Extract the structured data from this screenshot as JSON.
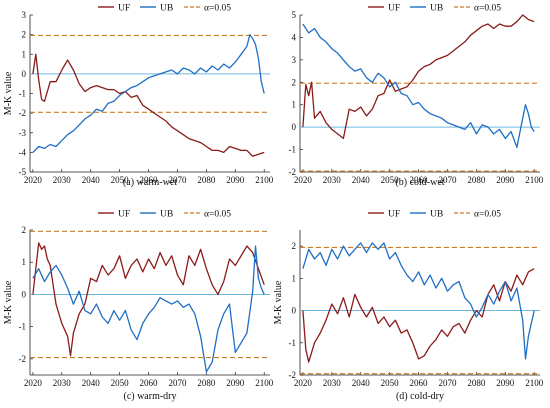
{
  "colors": {
    "uf": "#8B1A1A",
    "ub": "#1F6FC4",
    "threshold": "#C87F2A",
    "zero": "#6FB6E0"
  },
  "legend": {
    "uf": "UF",
    "ub": "UB",
    "alpha": "α=0.05"
  },
  "chart_data": [
    {
      "type": "line",
      "caption": "(a) warm-wet",
      "ylabel": "M-K value",
      "xlim": [
        2019,
        2102
      ],
      "ylim": [
        -5,
        3
      ],
      "xticks": [
        2020,
        2030,
        2040,
        2050,
        2060,
        2070,
        2080,
        2090,
        2100
      ],
      "yticks": [
        -5,
        -4,
        -3,
        -2,
        -1,
        0,
        1,
        2,
        3
      ],
      "threshold": 1.96,
      "series": [
        {
          "name": "UF",
          "x": [
            2020,
            2021,
            2022,
            2023,
            2024,
            2026,
            2028,
            2030,
            2032,
            2034,
            2036,
            2038,
            2040,
            2042,
            2044,
            2046,
            2048,
            2050,
            2052,
            2054,
            2056,
            2058,
            2060,
            2062,
            2064,
            2066,
            2068,
            2070,
            2072,
            2074,
            2076,
            2078,
            2080,
            2082,
            2084,
            2086,
            2088,
            2090,
            2092,
            2094,
            2096,
            2098,
            2100
          ],
          "values": [
            0,
            1.0,
            -0.3,
            -1.3,
            -1.4,
            -0.4,
            -0.4,
            0.2,
            0.7,
            0.2,
            -0.5,
            -0.9,
            -0.7,
            -0.6,
            -0.7,
            -0.8,
            -0.8,
            -1.0,
            -0.9,
            -1.2,
            -1.1,
            -1.6,
            -1.8,
            -2.0,
            -2.2,
            -2.4,
            -2.7,
            -2.9,
            -3.1,
            -3.3,
            -3.4,
            -3.5,
            -3.7,
            -3.9,
            -3.9,
            -4.0,
            -3.7,
            -3.8,
            -3.9,
            -3.9,
            -4.2,
            -4.1,
            -4.0
          ]
        },
        {
          "name": "UB",
          "x": [
            2020,
            2022,
            2024,
            2026,
            2028,
            2030,
            2032,
            2034,
            2036,
            2038,
            2040,
            2042,
            2044,
            2046,
            2048,
            2050,
            2052,
            2054,
            2056,
            2058,
            2060,
            2062,
            2064,
            2066,
            2068,
            2070,
            2072,
            2074,
            2076,
            2078,
            2080,
            2082,
            2084,
            2086,
            2088,
            2090,
            2092,
            2094,
            2095,
            2096,
            2097,
            2098,
            2099,
            2100
          ],
          "values": [
            -4.0,
            -3.7,
            -3.8,
            -3.6,
            -3.7,
            -3.4,
            -3.1,
            -2.9,
            -2.6,
            -2.3,
            -2.1,
            -1.8,
            -1.9,
            -1.5,
            -1.4,
            -1.1,
            -0.9,
            -0.7,
            -0.6,
            -0.4,
            -0.2,
            -0.1,
            0.0,
            0.1,
            0.2,
            0.0,
            0.3,
            0.2,
            0.0,
            0.3,
            0.1,
            0.4,
            0.2,
            0.5,
            0.3,
            0.6,
            1.0,
            1.4,
            2.0,
            1.8,
            1.5,
            0.8,
            -0.4,
            -1.0
          ]
        }
      ]
    },
    {
      "type": "line",
      "caption": "(b) cold-wet",
      "ylabel": "",
      "xlim": [
        2019,
        2102
      ],
      "ylim": [
        -2,
        5
      ],
      "xticks": [
        2020,
        2030,
        2040,
        2050,
        2060,
        2070,
        2080,
        2090,
        2100
      ],
      "yticks": [
        -2,
        -1,
        0,
        1,
        2,
        3,
        4,
        5
      ],
      "threshold": 1.96,
      "series": [
        {
          "name": "UF",
          "x": [
            2020,
            2021,
            2022,
            2023,
            2024,
            2026,
            2028,
            2030,
            2032,
            2034,
            2036,
            2038,
            2040,
            2042,
            2044,
            2046,
            2048,
            2050,
            2052,
            2054,
            2056,
            2058,
            2060,
            2062,
            2064,
            2066,
            2068,
            2070,
            2072,
            2074,
            2076,
            2078,
            2080,
            2082,
            2084,
            2086,
            2088,
            2090,
            2092,
            2094,
            2096,
            2098,
            2100
          ],
          "values": [
            0,
            1.9,
            1.4,
            2.0,
            0.4,
            0.7,
            0.2,
            -0.1,
            -0.3,
            -0.5,
            0.8,
            0.7,
            0.9,
            0.5,
            0.8,
            1.4,
            1.5,
            2.1,
            1.6,
            1.7,
            1.8,
            2.1,
            2.5,
            2.7,
            2.8,
            3.0,
            3.1,
            3.2,
            3.4,
            3.6,
            3.8,
            4.1,
            4.3,
            4.5,
            4.6,
            4.4,
            4.6,
            4.5,
            4.5,
            4.7,
            5.0,
            4.8,
            4.7
          ]
        },
        {
          "name": "UB",
          "x": [
            2020,
            2022,
            2024,
            2026,
            2028,
            2030,
            2032,
            2034,
            2036,
            2038,
            2040,
            2042,
            2044,
            2046,
            2048,
            2050,
            2052,
            2054,
            2056,
            2058,
            2060,
            2062,
            2064,
            2066,
            2068,
            2070,
            2072,
            2074,
            2076,
            2078,
            2080,
            2082,
            2084,
            2086,
            2088,
            2090,
            2092,
            2094,
            2096,
            2097,
            2098,
            2099,
            2100
          ],
          "values": [
            4.6,
            4.2,
            4.4,
            4.0,
            3.8,
            3.5,
            3.3,
            3.0,
            2.7,
            2.5,
            2.6,
            2.2,
            2.0,
            2.4,
            2.2,
            1.8,
            2.0,
            1.5,
            1.4,
            1.0,
            1.1,
            0.8,
            0.6,
            0.5,
            0.4,
            0.2,
            0.1,
            0.0,
            -0.1,
            0.2,
            -0.3,
            0.1,
            0.0,
            -0.3,
            -0.1,
            -0.5,
            -0.2,
            -0.9,
            0.4,
            1.0,
            0.6,
            0.0,
            -0.2
          ]
        }
      ]
    },
    {
      "type": "line",
      "caption": "(c) warm-dry",
      "ylabel": "M-K value",
      "xlim": [
        2019,
        2102
      ],
      "ylim": [
        -2.5,
        2
      ],
      "xticks": [
        2020,
        2030,
        2040,
        2050,
        2060,
        2070,
        2080,
        2090,
        2100
      ],
      "yticks": [
        -2,
        -1,
        0,
        1,
        2
      ],
      "threshold": 1.96,
      "series": [
        {
          "name": "UF",
          "x": [
            2020,
            2021,
            2022,
            2023,
            2024,
            2025,
            2026,
            2027,
            2028,
            2030,
            2032,
            2033,
            2034,
            2036,
            2038,
            2040,
            2042,
            2044,
            2046,
            2048,
            2050,
            2052,
            2054,
            2056,
            2058,
            2060,
            2062,
            2064,
            2066,
            2068,
            2070,
            2072,
            2074,
            2076,
            2078,
            2080,
            2082,
            2084,
            2086,
            2088,
            2090,
            2092,
            2094,
            2096,
            2098,
            2100
          ],
          "values": [
            0,
            0.8,
            1.6,
            1.4,
            1.5,
            1.1,
            0.9,
            0.3,
            -0.3,
            -0.9,
            -1.3,
            -1.9,
            -1.2,
            -0.6,
            -0.3,
            0.5,
            0.4,
            0.9,
            0.6,
            0.8,
            1.2,
            0.5,
            0.9,
            1.1,
            0.7,
            1.1,
            0.8,
            1.3,
            0.9,
            1.2,
            0.6,
            0.3,
            1.2,
            0.9,
            1.4,
            0.8,
            0.3,
            0.0,
            0.4,
            1.1,
            0.9,
            1.2,
            1.5,
            1.3,
            0.8,
            0.3
          ]
        },
        {
          "name": "UB",
          "x": [
            2020,
            2022,
            2024,
            2026,
            2028,
            2030,
            2032,
            2034,
            2036,
            2038,
            2040,
            2042,
            2044,
            2046,
            2048,
            2050,
            2052,
            2054,
            2056,
            2058,
            2060,
            2062,
            2064,
            2066,
            2068,
            2070,
            2072,
            2074,
            2076,
            2078,
            2080,
            2082,
            2084,
            2086,
            2088,
            2090,
            2092,
            2094,
            2096,
            2097,
            2098,
            2099,
            2100
          ],
          "values": [
            0.5,
            0.8,
            0.4,
            0.7,
            0.9,
            0.6,
            0.2,
            -0.3,
            0.1,
            -0.5,
            -0.6,
            -0.3,
            -0.7,
            -0.9,
            -0.5,
            -0.8,
            -0.5,
            -1.1,
            -1.4,
            -0.9,
            -0.6,
            -0.4,
            -0.1,
            -0.2,
            -0.3,
            -0.2,
            -0.4,
            -0.3,
            -0.6,
            -1.3,
            -2.4,
            -2.1,
            -1.1,
            -0.6,
            -0.3,
            -1.8,
            -1.5,
            -1.2,
            0.1,
            1.5,
            0.5,
            0.2,
            0.0
          ]
        }
      ]
    },
    {
      "type": "line",
      "caption": "(d) cold-dry",
      "ylabel": "M-K value",
      "xlim": [
        2019,
        2102
      ],
      "ylim": [
        -2,
        2.5
      ],
      "xticks": [
        2020,
        2030,
        2040,
        2050,
        2060,
        2070,
        2080,
        2090,
        2100
      ],
      "yticks": [
        -2,
        -1,
        0,
        1,
        2
      ],
      "threshold": 1.96,
      "series": [
        {
          "name": "UF",
          "x": [
            2020,
            2021,
            2022,
            2024,
            2026,
            2028,
            2030,
            2032,
            2034,
            2036,
            2038,
            2040,
            2042,
            2044,
            2046,
            2048,
            2050,
            2052,
            2054,
            2056,
            2058,
            2060,
            2062,
            2064,
            2066,
            2068,
            2070,
            2072,
            2074,
            2076,
            2078,
            2080,
            2082,
            2084,
            2086,
            2088,
            2090,
            2092,
            2094,
            2096,
            2098,
            2100
          ],
          "values": [
            0,
            -1.2,
            -1.6,
            -1.0,
            -0.7,
            -0.3,
            0.2,
            -0.1,
            0.4,
            -0.2,
            0.5,
            0.1,
            -0.2,
            0.1,
            -0.4,
            -0.2,
            -0.5,
            -0.3,
            -0.7,
            -0.6,
            -1.0,
            -1.5,
            -1.4,
            -1.1,
            -0.9,
            -0.6,
            -0.8,
            -0.5,
            -0.4,
            -0.7,
            -0.3,
            0.0,
            -0.2,
            0.5,
            0.8,
            0.3,
            0.9,
            0.6,
            1.1,
            0.8,
            1.2,
            1.3
          ]
        },
        {
          "name": "UB",
          "x": [
            2020,
            2022,
            2024,
            2026,
            2028,
            2030,
            2032,
            2034,
            2036,
            2038,
            2040,
            2042,
            2044,
            2046,
            2048,
            2050,
            2052,
            2054,
            2056,
            2058,
            2060,
            2062,
            2064,
            2066,
            2068,
            2070,
            2072,
            2074,
            2076,
            2078,
            2080,
            2082,
            2084,
            2086,
            2088,
            2090,
            2092,
            2094,
            2096,
            2097,
            2098,
            2099,
            2100
          ],
          "values": [
            1.3,
            1.9,
            1.6,
            1.8,
            1.4,
            1.9,
            1.6,
            2.0,
            1.7,
            1.9,
            2.1,
            1.8,
            2.1,
            1.9,
            2.1,
            1.6,
            1.8,
            1.4,
            1.1,
            0.9,
            1.2,
            0.8,
            1.1,
            0.7,
            1.0,
            0.6,
            0.8,
            0.9,
            0.4,
            0.2,
            -0.2,
            0.1,
            0.5,
            0.2,
            0.6,
            0.9,
            0.3,
            0.7,
            -0.3,
            -1.5,
            -0.8,
            -0.4,
            0.0
          ]
        }
      ]
    }
  ]
}
